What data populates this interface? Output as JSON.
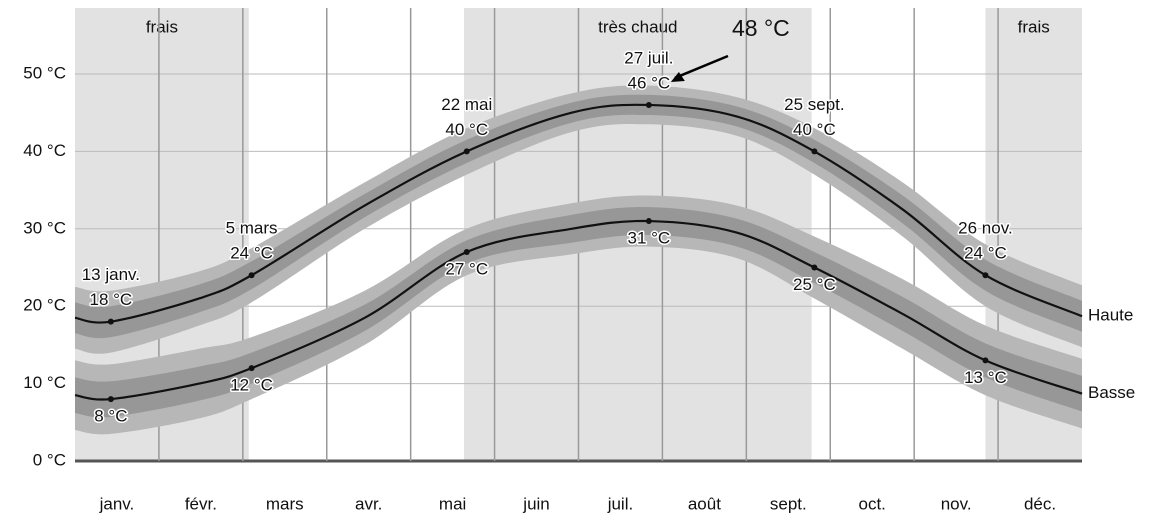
{
  "chart_data": {
    "type": "line",
    "categories": [
      "janv.",
      "févr.",
      "mars",
      "avr.",
      "mai",
      "juin",
      "juil.",
      "août",
      "sept.",
      "oct.",
      "nov.",
      "déc."
    ],
    "xlim": [
      0,
      365
    ],
    "ylim": [
      0,
      50
    ],
    "yticks": [
      {
        "value": 0,
        "label": "0 °C"
      },
      {
        "value": 10,
        "label": "10 °C"
      },
      {
        "value": 20,
        "label": "20 °C"
      },
      {
        "value": 30,
        "label": "30 °C"
      },
      {
        "value": 40,
        "label": "40 °C"
      },
      {
        "value": 50,
        "label": "50 °C"
      }
    ],
    "grid": true,
    "regions": [
      {
        "label": "frais",
        "from": 0,
        "to": 63
      },
      {
        "label": "très chaud",
        "from": 141,
        "to": 267
      },
      {
        "label": "frais",
        "from": 330,
        "to": 365
      }
    ],
    "x": [
      0,
      13,
      45,
      64,
      105,
      142,
      180,
      208,
      240,
      268,
      300,
      330,
      365
    ],
    "series": [
      {
        "name": "Haute",
        "color": "#111111",
        "values": [
          18.5,
          18,
          21,
          24,
          33,
          40,
          45,
          46,
          44.5,
          40,
          32.5,
          24,
          18.7
        ],
        "value_labels": [
          null,
          "18 °C",
          null,
          "24 °C",
          null,
          "40 °C",
          null,
          "46 °C",
          null,
          "40 °C",
          null,
          "24 °C",
          null
        ],
        "date_labels": [
          null,
          "13 janv.",
          null,
          "5 mars",
          null,
          "22 mai",
          null,
          "27 juil.",
          null,
          "25 sept.",
          null,
          "26 nov.",
          null
        ],
        "p90": [
          22.5,
          22,
          24.5,
          27.5,
          36,
          43,
          47.5,
          48.5,
          47,
          43,
          36,
          28,
          22.7
        ],
        "p75": [
          20.5,
          20,
          22.8,
          25.8,
          34.5,
          41.5,
          46.3,
          47.3,
          45.8,
          41.5,
          34.3,
          26,
          20.7
        ],
        "p25": [
          16.5,
          16,
          19.2,
          22.2,
          31.5,
          38.5,
          43.7,
          44.7,
          43.2,
          38.5,
          30.7,
          22,
          16.7
        ],
        "p10": [
          14.5,
          14,
          17.5,
          20.5,
          30,
          37,
          42.5,
          43.5,
          42,
          37,
          29,
          20,
          14.7
        ]
      },
      {
        "name": "Basse",
        "color": "#111111",
        "values": [
          8.5,
          8,
          10,
          12,
          18.5,
          27,
          30,
          31,
          29.5,
          25,
          19,
          13,
          8.7
        ],
        "value_labels": [
          null,
          "8 °C",
          null,
          "12 °C",
          null,
          "27 °C",
          null,
          "31 °C",
          null,
          "25 °C",
          null,
          "13 °C",
          null
        ],
        "p90": [
          13,
          12.5,
          14.5,
          16,
          22,
          30,
          33.3,
          34.3,
          33,
          29,
          23.5,
          17.5,
          13.2
        ],
        "p75": [
          10.8,
          10.3,
          12.2,
          14,
          20.2,
          28.5,
          31.8,
          32.8,
          31.3,
          27,
          21.2,
          15.2,
          11
        ],
        "p25": [
          6.2,
          5.7,
          7.8,
          10,
          16.8,
          25.5,
          28.2,
          29.2,
          27.7,
          23,
          16.8,
          10.8,
          6.4
        ],
        "p10": [
          4,
          3.5,
          5.5,
          8,
          15,
          24,
          26.7,
          27.7,
          26.2,
          21,
          14.5,
          8.5,
          4.2
        ]
      }
    ],
    "callout": {
      "value": 48,
      "label": "48 °C"
    }
  }
}
